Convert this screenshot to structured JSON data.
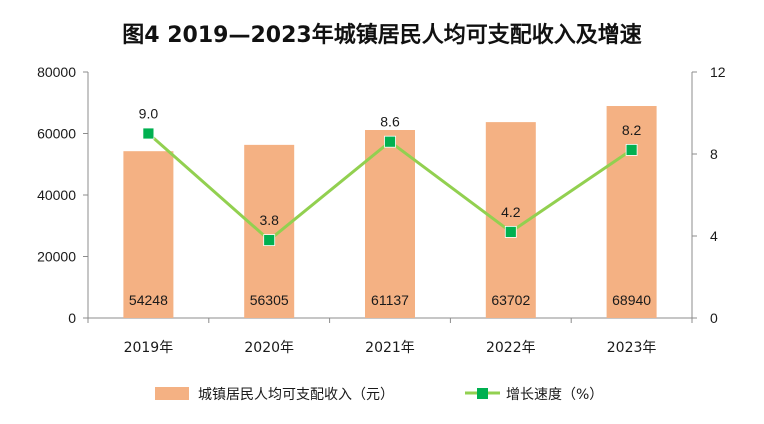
{
  "chart_data": {
    "type": "bar",
    "title": "图4  2019—2023年城镇居民人均可支配收入及增速",
    "categories": [
      "2019年",
      "2020年",
      "2021年",
      "2022年",
      "2023年"
    ],
    "series": [
      {
        "name": "城镇居民人均可支配收入（元）",
        "type": "bar",
        "axis": "left",
        "values": [
          54248,
          56305,
          61137,
          63702,
          68940
        ],
        "color": "#F4B183"
      },
      {
        "name": "增长速度（%）",
        "type": "line",
        "axis": "right",
        "values": [
          9.0,
          3.8,
          8.6,
          4.2,
          8.2
        ],
        "color": "#92D050",
        "marker_color": "#00B050"
      }
    ],
    "y_left": {
      "lim": [
        0,
        80000
      ],
      "ticks": [
        "0",
        "20000",
        "40000",
        "60000",
        "80000"
      ]
    },
    "y_right": {
      "lim": [
        0,
        12
      ],
      "ticks": [
        "0",
        "4",
        "8",
        "12"
      ]
    },
    "bar_labels": [
      "54248",
      "56305",
      "61137",
      "63702",
      "68940"
    ],
    "line_labels": [
      "9.0",
      "3.8",
      "8.6",
      "4.2",
      "8.2"
    ],
    "grid": false,
    "legend_position": "bottom"
  }
}
